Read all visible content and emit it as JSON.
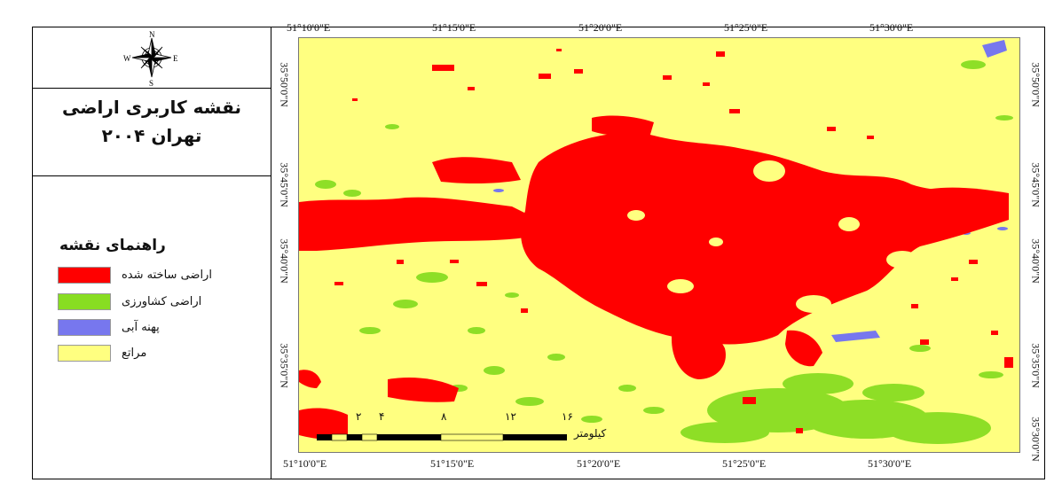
{
  "map": {
    "title_line1": "نقشه کاربری اراضی",
    "title_line2": "تهران ۲۰۰۴",
    "compass": {
      "n": "N",
      "s": "S",
      "e": "E",
      "w": "W"
    },
    "legend": {
      "title": "راهنمای نقشه",
      "items": [
        {
          "label": "اراضی ساخته شده",
          "color": "#ff0000"
        },
        {
          "label": "اراضی کشاورزی",
          "color": "#88dd22"
        },
        {
          "label": "پهنه آبی",
          "color": "#7777ee"
        },
        {
          "label": "مراتع",
          "color": "#ffff80"
        }
      ]
    },
    "lon_labels": [
      "51°10'0\"E",
      "51°15'0\"E",
      "51°20'0\"E",
      "51°25'0\"E",
      "51°30'0\"E"
    ],
    "lat_labels": [
      "35°50'0\"N",
      "35°45'0\"N",
      "35°40'0\"N",
      "35°35'0\"N",
      "35°30'0\"N"
    ],
    "scalebar": {
      "unit": "کیلومتر",
      "ticks": [
        "۲",
        "۴",
        "۸",
        "۱۲",
        "۱۶"
      ]
    }
  }
}
